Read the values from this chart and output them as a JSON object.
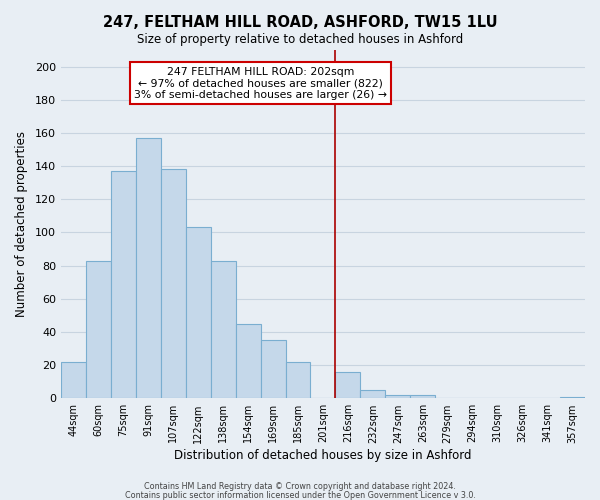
{
  "title": "247, FELTHAM HILL ROAD, ASHFORD, TW15 1LU",
  "subtitle": "Size of property relative to detached houses in Ashford",
  "xlabel": "Distribution of detached houses by size in Ashford",
  "ylabel": "Number of detached properties",
  "bar_labels": [
    "44sqm",
    "60sqm",
    "75sqm",
    "91sqm",
    "107sqm",
    "122sqm",
    "138sqm",
    "154sqm",
    "169sqm",
    "185sqm",
    "201sqm",
    "216sqm",
    "232sqm",
    "247sqm",
    "263sqm",
    "279sqm",
    "294sqm",
    "310sqm",
    "326sqm",
    "341sqm",
    "357sqm"
  ],
  "bar_values": [
    22,
    83,
    137,
    157,
    138,
    103,
    83,
    45,
    35,
    22,
    0,
    16,
    5,
    2,
    2,
    0,
    0,
    0,
    0,
    0,
    1
  ],
  "bar_color": "#c5d8ea",
  "bar_edgecolor": "#7aaed0",
  "red_line_x": 10.5,
  "ylim": [
    0,
    210
  ],
  "yticks": [
    0,
    20,
    40,
    60,
    80,
    100,
    120,
    140,
    160,
    180,
    200
  ],
  "annotation_title": "247 FELTHAM HILL ROAD: 202sqm",
  "annotation_line1": "← 97% of detached houses are smaller (822)",
  "annotation_line2": "3% of semi-detached houses are larger (26) →",
  "footer1": "Contains HM Land Registry data © Crown copyright and database right 2024.",
  "footer2": "Contains public sector information licensed under the Open Government Licence v 3.0.",
  "bg_color": "#e8eef4"
}
